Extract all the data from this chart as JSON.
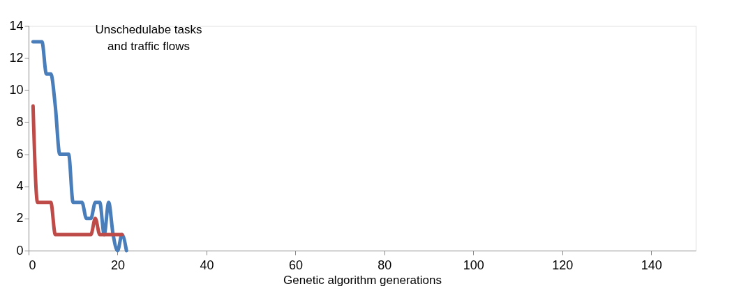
{
  "chart_data": {
    "type": "line",
    "xlabel": "Genetic algorithm generations",
    "annotations": [
      "Unschedulabe tasks\nand traffic flows"
    ],
    "series": [
      {
        "color": "#4a7ebb",
        "x": [
          1,
          2,
          3,
          4,
          5,
          6,
          7,
          8,
          9,
          10,
          11,
          12,
          13,
          14,
          15,
          16,
          17,
          18,
          19,
          20,
          21,
          22
        ],
        "values": [
          13,
          13,
          13,
          11,
          11,
          9,
          6,
          6,
          6,
          3,
          3,
          3,
          2,
          2,
          3,
          3,
          1,
          3,
          1,
          0,
          1,
          0
        ]
      },
      {
        "color": "#be4b48",
        "x": [
          1,
          2,
          3,
          4,
          5,
          6,
          7,
          8,
          9,
          10,
          11,
          12,
          13,
          14,
          15,
          16,
          17,
          18,
          19,
          20,
          21
        ],
        "values": [
          9,
          3,
          3,
          3,
          3,
          1,
          1,
          1,
          1,
          1,
          1,
          1,
          1,
          1,
          2,
          1,
          1,
          1,
          1,
          1,
          1
        ]
      }
    ],
    "xlim": [
      0,
      150
    ],
    "xticks": [
      0,
      20,
      40,
      60,
      80,
      100,
      120,
      140
    ],
    "ylim": [
      0,
      14
    ],
    "yticks": [
      0,
      2,
      4,
      6,
      8,
      10,
      12,
      14
    ],
    "grid": false,
    "legend": false,
    "marker": "none",
    "line_style": "solid"
  }
}
